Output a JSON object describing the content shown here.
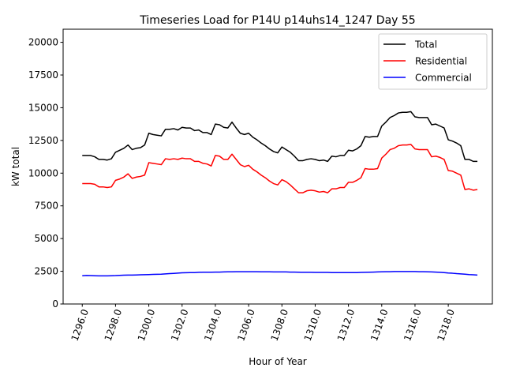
{
  "chart_data": {
    "type": "line",
    "title": "Timeseries Load for P14U p14uhs14_1247  Day 55",
    "xlabel": "Hour of Year",
    "ylabel": "kW total",
    "xlim": [
      1294.85,
      1320.65
    ],
    "ylim": [
      0,
      21000
    ],
    "x_ticks": [
      1296,
      1298,
      1300,
      1302,
      1304,
      1306,
      1308,
      1310,
      1312,
      1314,
      1316,
      1318
    ],
    "x_tick_labels": [
      "1296.0",
      "1298.0",
      "1300.0",
      "1302.0",
      "1304.0",
      "1306.0",
      "1308.0",
      "1310.0",
      "1312.0",
      "1314.0",
      "1316.0",
      "1318.0"
    ],
    "y_ticks": [
      0,
      2500,
      5000,
      7500,
      10000,
      12500,
      15000,
      17500,
      20000
    ],
    "y_tick_labels": [
      "0",
      "2500",
      "5000",
      "7500",
      "10000",
      "12500",
      "15000",
      "17500",
      "20000"
    ],
    "legend_position": "top-right",
    "x_start": 1296,
    "x_step": 0.25,
    "series": [
      {
        "name": "Total",
        "color": "#000000",
        "values": [
          11350,
          11350,
          11350,
          11250,
          11050,
          11050,
          11000,
          11100,
          11600,
          11750,
          11900,
          12150,
          11800,
          11900,
          11950,
          12150,
          13050,
          12950,
          12900,
          12850,
          13350,
          13350,
          13400,
          13300,
          13500,
          13450,
          13450,
          13250,
          13300,
          13100,
          13100,
          12950,
          13750,
          13700,
          13500,
          13450,
          13900,
          13450,
          13050,
          12950,
          13050,
          12750,
          12550,
          12300,
          12100,
          11850,
          11650,
          11550,
          12000,
          11800,
          11600,
          11300,
          10950,
          10950,
          11050,
          11100,
          11050,
          10950,
          11000,
          10900,
          11300,
          11250,
          11350,
          11350,
          11750,
          11700,
          11850,
          12100,
          12800,
          12750,
          12800,
          12800,
          13600,
          13900,
          14250,
          14400,
          14600,
          14650,
          14650,
          14700,
          14300,
          14250,
          14250,
          14250,
          13700,
          13750,
          13600,
          13450,
          12550,
          12450,
          12300,
          12100,
          11050,
          11050,
          10900,
          10900
        ]
      },
      {
        "name": "Residential",
        "color": "#ff0000",
        "values": [
          9200,
          9200,
          9200,
          9150,
          8950,
          8950,
          8900,
          8950,
          9450,
          9550,
          9700,
          9950,
          9600,
          9700,
          9750,
          9850,
          10800,
          10750,
          10700,
          10650,
          11100,
          11050,
          11100,
          11050,
          11150,
          11100,
          11100,
          10900,
          10900,
          10750,
          10700,
          10550,
          11350,
          11300,
          11050,
          11050,
          11450,
          11050,
          10650,
          10500,
          10600,
          10300,
          10100,
          9850,
          9650,
          9400,
          9200,
          9100,
          9500,
          9350,
          9100,
          8800,
          8500,
          8500,
          8650,
          8700,
          8650,
          8550,
          8600,
          8500,
          8800,
          8800,
          8900,
          8900,
          9300,
          9300,
          9450,
          9650,
          10350,
          10300,
          10300,
          10350,
          11150,
          11450,
          11800,
          11900,
          12100,
          12150,
          12150,
          12200,
          11850,
          11800,
          11800,
          11800,
          11250,
          11300,
          11200,
          11050,
          10200,
          10150,
          10000,
          9850,
          8750,
          8800,
          8700,
          8750
        ]
      },
      {
        "name": "Commercial",
        "color": "#0000ff",
        "values": [
          2160,
          2180,
          2170,
          2160,
          2150,
          2150,
          2150,
          2160,
          2170,
          2190,
          2200,
          2210,
          2210,
          2220,
          2230,
          2240,
          2250,
          2260,
          2270,
          2280,
          2300,
          2320,
          2340,
          2360,
          2380,
          2390,
          2400,
          2400,
          2420,
          2430,
          2430,
          2430,
          2440,
          2440,
          2450,
          2460,
          2460,
          2470,
          2470,
          2470,
          2470,
          2470,
          2470,
          2460,
          2460,
          2460,
          2450,
          2450,
          2450,
          2450,
          2440,
          2440,
          2430,
          2420,
          2420,
          2420,
          2410,
          2410,
          2410,
          2410,
          2400,
          2400,
          2400,
          2400,
          2400,
          2400,
          2400,
          2410,
          2420,
          2430,
          2440,
          2450,
          2460,
          2470,
          2470,
          2480,
          2480,
          2480,
          2480,
          2480,
          2480,
          2470,
          2470,
          2460,
          2450,
          2440,
          2420,
          2400,
          2370,
          2350,
          2320,
          2300,
          2280,
          2250,
          2230,
          2210
        ]
      }
    ]
  }
}
